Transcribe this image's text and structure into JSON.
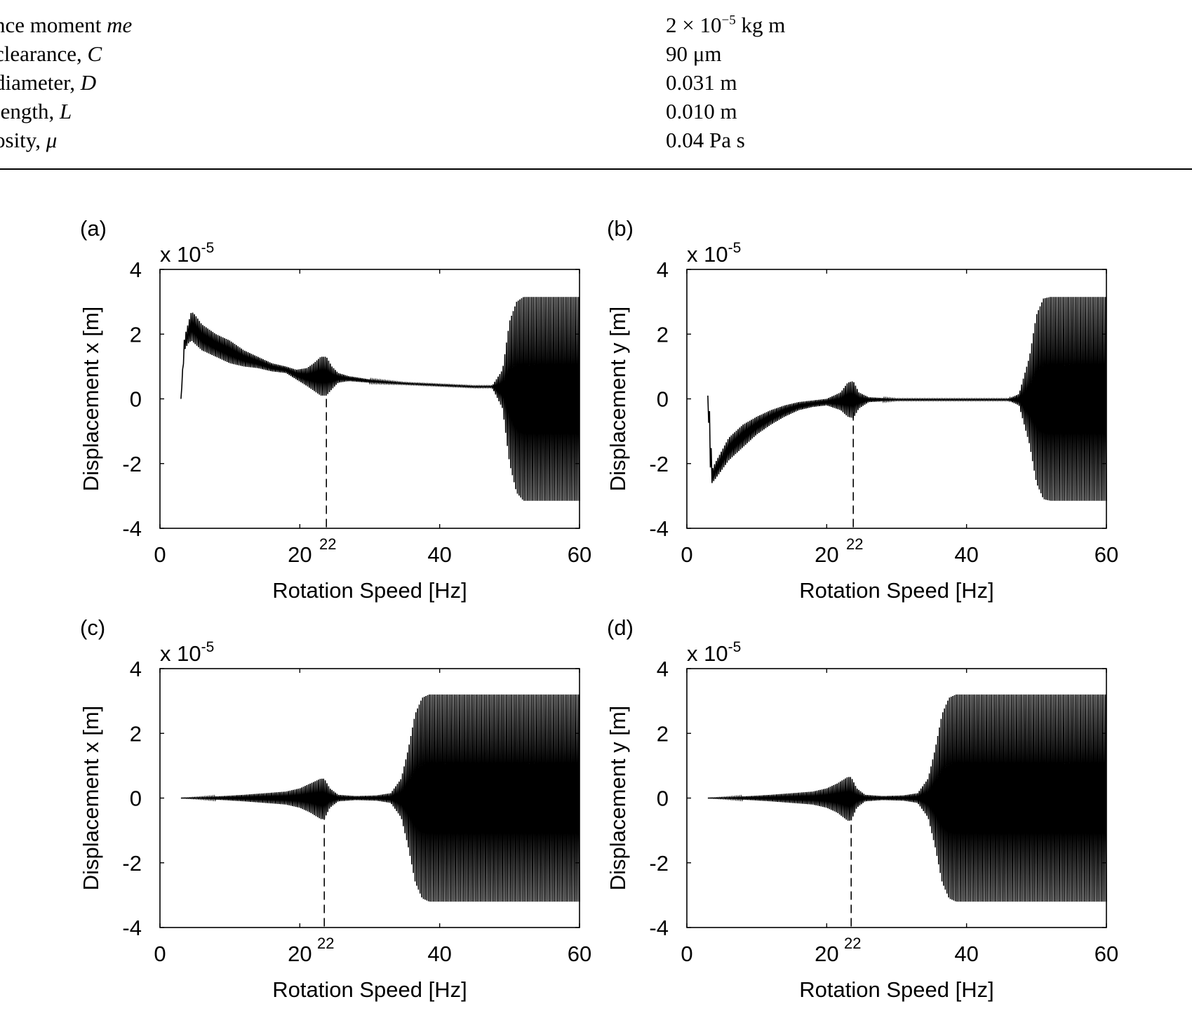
{
  "table": {
    "rows": [
      {
        "name_pre": "nce moment ",
        "name_sym": "me",
        "value_pre": "2 × 10",
        "value_sup": "−5",
        "value_post": " kg m"
      },
      {
        "name_pre": " clearance, ",
        "name_sym": "C",
        "value_pre": "90 μm",
        "value_sup": "",
        "value_post": ""
      },
      {
        "name_pre": " diameter, ",
        "name_sym": "D",
        "value_pre": "0.031 m",
        "value_sup": "",
        "value_post": ""
      },
      {
        "name_pre": " length, ",
        "name_sym": "L",
        "value_pre": "0.010 m",
        "value_sup": "",
        "value_post": ""
      },
      {
        "name_pre": "osity, ",
        "name_sym": "μ",
        "value_pre": "0.04 Pa s",
        "value_sup": "",
        "value_post": ""
      }
    ]
  },
  "chart_data": [
    {
      "type": "line",
      "panel_label": "(a)",
      "xlabel": "Rotation Speed [Hz]",
      "ylabel": "Displacement x [m]",
      "scale_base": "x 10",
      "scale_exp": "-5",
      "xlim": [
        0,
        60
      ],
      "ylim": [
        -4,
        4
      ],
      "xticks": [
        0,
        20,
        40,
        60
      ],
      "yticks": [
        -4,
        -2,
        0,
        2,
        4
      ],
      "marker": {
        "x": 23.8,
        "label": "22"
      },
      "series": [
        {
          "envelope": {
            "x": [
              3,
              3.5,
              4,
              4.5,
              5,
              6,
              8,
              10,
              12,
              14,
              16,
              18,
              19.5,
              21,
              22,
              23,
              23.8,
              24.6,
              25.5,
              27,
              30,
              35,
              40,
              45,
              47.5,
              49,
              50,
              51,
              52,
              60
            ],
            "upper": [
              0,
              1.9,
              2.3,
              2.7,
              2.6,
              2.3,
              2.0,
              1.8,
              1.5,
              1.3,
              1.1,
              1.0,
              0.9,
              0.95,
              1.1,
              1.3,
              1.3,
              1.0,
              0.8,
              0.7,
              0.6,
              0.5,
              0.45,
              0.4,
              0.4,
              0.9,
              2.4,
              3.0,
              3.15,
              3.15
            ],
            "lower": [
              0,
              1.5,
              1.7,
              1.8,
              1.7,
              1.5,
              1.3,
              1.1,
              1.0,
              0.95,
              0.85,
              0.8,
              0.6,
              0.4,
              0.25,
              0.1,
              0.1,
              0.3,
              0.5,
              0.55,
              0.5,
              0.45,
              0.4,
              0.35,
              0.35,
              -0.3,
              -2.0,
              -2.9,
              -3.15,
              -3.15
            ]
          }
        }
      ]
    },
    {
      "type": "line",
      "panel_label": "(b)",
      "xlabel": "Rotation Speed [Hz]",
      "ylabel": "Displacement y [m]",
      "scale_base": "x 10",
      "scale_exp": "-5",
      "xlim": [
        0,
        60
      ],
      "ylim": [
        -4,
        4
      ],
      "xticks": [
        0,
        20,
        40,
        60
      ],
      "yticks": [
        -4,
        -2,
        0,
        2,
        4
      ],
      "marker": {
        "x": 23.8,
        "label": "22"
      },
      "series": [
        {
          "envelope": {
            "x": [
              3,
              3.3,
              3.6,
              4,
              5,
              6,
              8,
              10,
              12,
              14,
              16,
              18,
              20,
              22,
              23,
              23.8,
              24.6,
              26,
              30,
              40,
              46,
              47.5,
              49,
              50,
              51,
              52,
              60
            ],
            "upper": [
              0.1,
              -0.5,
              -2.2,
              -2.0,
              -1.6,
              -1.2,
              -0.8,
              -0.55,
              -0.35,
              -0.2,
              -0.1,
              -0.05,
              0.0,
              0.2,
              0.5,
              0.55,
              0.2,
              0.05,
              0.0,
              0.0,
              0.0,
              0.15,
              1.3,
              2.6,
              3.1,
              3.15,
              3.15
            ],
            "lower": [
              0.1,
              -2.0,
              -2.6,
              -2.5,
              -2.2,
              -1.9,
              -1.5,
              -1.1,
              -0.8,
              -0.55,
              -0.35,
              -0.25,
              -0.2,
              -0.35,
              -0.55,
              -0.6,
              -0.3,
              -0.1,
              -0.05,
              -0.05,
              -0.05,
              -0.2,
              -1.4,
              -2.6,
              -3.1,
              -3.15,
              -3.15
            ]
          }
        }
      ]
    },
    {
      "type": "line",
      "panel_label": "(c)",
      "xlabel": "Rotation Speed [Hz]",
      "ylabel": "Displacement x [m]",
      "scale_base": "x 10",
      "scale_exp": "-5",
      "xlim": [
        0,
        60
      ],
      "ylim": [
        -4,
        4
      ],
      "xticks": [
        0,
        20,
        40,
        60
      ],
      "yticks": [
        -4,
        -2,
        0,
        2,
        4
      ],
      "marker": {
        "x": 23.5,
        "label": "22"
      },
      "series": [
        {
          "envelope": {
            "x": [
              3,
              6,
              9,
              12,
              15,
              18,
              20,
              21.5,
              23,
              23.5,
              24.3,
              25.5,
              28,
              31,
              33,
              34.5,
              35.5,
              36.5,
              37.5,
              38.5,
              60
            ],
            "upper": [
              0,
              0.03,
              0.06,
              0.1,
              0.15,
              0.2,
              0.3,
              0.45,
              0.6,
              0.6,
              0.3,
              0.1,
              0.06,
              0.08,
              0.15,
              0.6,
              1.5,
              2.6,
              3.1,
              3.2,
              3.2
            ],
            "lower": [
              0,
              -0.03,
              -0.06,
              -0.1,
              -0.15,
              -0.2,
              -0.3,
              -0.45,
              -0.65,
              -0.65,
              -0.3,
              -0.1,
              -0.06,
              -0.08,
              -0.15,
              -0.6,
              -1.5,
              -2.6,
              -3.1,
              -3.2,
              -3.2
            ]
          }
        }
      ]
    },
    {
      "type": "line",
      "panel_label": "(d)",
      "xlabel": "Rotation Speed [Hz]",
      "ylabel": "Displacement y [m]",
      "scale_base": "x 10",
      "scale_exp": "-5",
      "xlim": [
        0,
        60
      ],
      "ylim": [
        -4,
        4
      ],
      "xticks": [
        0,
        20,
        40,
        60
      ],
      "yticks": [
        -4,
        -2,
        0,
        2,
        4
      ],
      "marker": {
        "x": 23.5,
        "label": "22"
      },
      "series": [
        {
          "envelope": {
            "x": [
              3,
              6,
              9,
              12,
              15,
              18,
              20,
              21.5,
              23,
              23.5,
              24.3,
              25.5,
              28,
              31,
              33,
              34.5,
              35.5,
              36.5,
              37.5,
              38.5,
              60
            ],
            "upper": [
              0,
              0.03,
              0.06,
              0.1,
              0.15,
              0.2,
              0.3,
              0.45,
              0.65,
              0.65,
              0.3,
              0.1,
              0.06,
              0.08,
              0.15,
              0.6,
              1.5,
              2.6,
              3.1,
              3.2,
              3.2
            ],
            "lower": [
              0,
              -0.03,
              -0.06,
              -0.1,
              -0.15,
              -0.2,
              -0.3,
              -0.45,
              -0.7,
              -0.7,
              -0.3,
              -0.1,
              -0.06,
              -0.08,
              -0.15,
              -0.6,
              -1.5,
              -2.6,
              -3.1,
              -3.2,
              -3.2
            ]
          }
        }
      ]
    }
  ]
}
